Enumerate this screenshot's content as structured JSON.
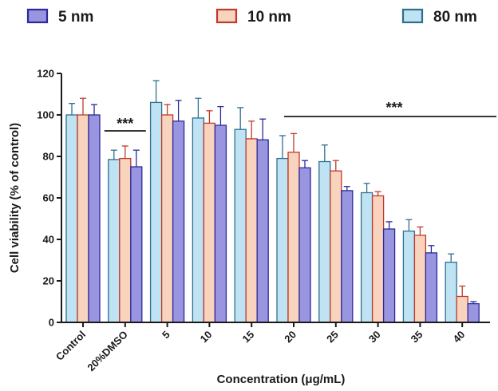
{
  "chart_data": {
    "type": "bar",
    "xlabel": "Concentration (μg/mL)",
    "ylabel": "Cell viability (% of control)",
    "ylim": [
      0,
      120
    ],
    "yticks": [
      "0",
      "20",
      "40",
      "60",
      "80",
      "100",
      "120"
    ],
    "categories": [
      "Control",
      "20%DMSO",
      "5",
      "10",
      "15",
      "20",
      "25",
      "30",
      "35",
      "40"
    ],
    "legend": {
      "placement": "top"
    },
    "grid": false,
    "series": [
      {
        "name": "80 nm",
        "color": "#bfe3f2",
        "stroke": "#2e6e8e",
        "values": [
          100,
          78.5,
          106,
          98.5,
          93,
          79,
          77.5,
          62.5,
          44,
          29
        ],
        "errors": [
          5.5,
          4.5,
          10.5,
          9.5,
          10.5,
          11,
          8,
          4.5,
          5.5,
          4
        ]
      },
      {
        "name": "10 nm",
        "color": "#f8d3bd",
        "stroke": "#c0392b",
        "values": [
          100,
          79,
          100,
          96,
          88.5,
          82,
          73,
          61,
          42,
          12.5
        ],
        "errors": [
          8,
          6,
          5,
          6,
          8.5,
          9,
          5,
          2,
          4,
          5
        ]
      },
      {
        "name": "5 nm",
        "color": "#9a95e0",
        "stroke": "#2a2a9a",
        "values": [
          100,
          75,
          97,
          95,
          88,
          74.5,
          63.5,
          45,
          33.5,
          9
        ],
        "errors": [
          5,
          8,
          10,
          9,
          10,
          3.5,
          2,
          3.5,
          3.5,
          1
        ]
      }
    ],
    "legend_order": [
      "5 nm",
      "10 nm",
      "80 nm"
    ],
    "annotations": [
      {
        "text": "***",
        "target": "20%DMSO"
      },
      {
        "text": "***",
        "target": "20 to 40"
      }
    ]
  }
}
